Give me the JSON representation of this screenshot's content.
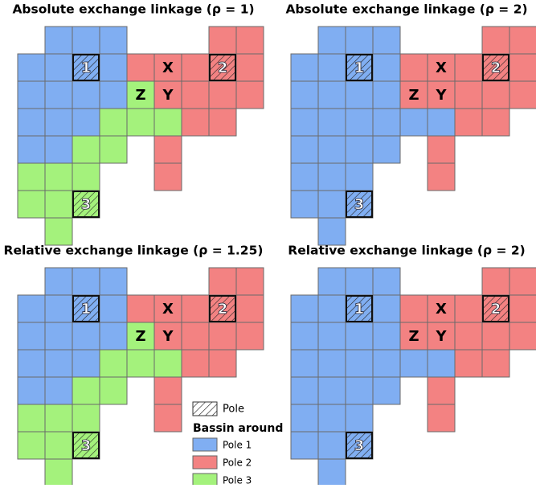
{
  "colors": {
    "B": "#80aef2",
    "R": "#f38282",
    "G": "#a4f27c"
  },
  "panels": [
    {
      "title": "Absolute exchange linkage (ρ = 1)",
      "grid": [
        "_BBB___RR",
        "BBBBRRRRR",
        "BBBBGRRRR",
        "BBBGGGRR_",
        "BBGG_R___",
        "GGG__R___",
        "GGG______",
        "_G_______"
      ],
      "labels": [
        {
          "row": 1,
          "col": 2,
          "text": "1",
          "pole": true
        },
        {
          "row": 1,
          "col": 5,
          "text": "X",
          "pole": false
        },
        {
          "row": 1,
          "col": 7,
          "text": "2",
          "pole": true
        },
        {
          "row": 2,
          "col": 4,
          "text": "Z",
          "pole": false
        },
        {
          "row": 2,
          "col": 5,
          "text": "Y",
          "pole": false
        },
        {
          "row": 6,
          "col": 2,
          "text": "3",
          "pole": true
        }
      ]
    },
    {
      "title": "Absolute exchange linkage (ρ = 2)",
      "grid": [
        "_BBB___RR",
        "BBBBRRRRR",
        "BBBBRRRRR",
        "BBBBBBRR_",
        "BBBB_R___",
        "BBB__R___",
        "BBB______",
        "_B_______"
      ],
      "labels": [
        {
          "row": 1,
          "col": 2,
          "text": "1",
          "pole": true
        },
        {
          "row": 1,
          "col": 5,
          "text": "X",
          "pole": false
        },
        {
          "row": 1,
          "col": 7,
          "text": "2",
          "pole": true
        },
        {
          "row": 2,
          "col": 4,
          "text": "Z",
          "pole": false
        },
        {
          "row": 2,
          "col": 5,
          "text": "Y",
          "pole": false
        },
        {
          "row": 6,
          "col": 2,
          "text": "3",
          "pole": true
        }
      ]
    },
    {
      "title": "Relative exchange linkage (ρ = 1.25)",
      "grid": [
        "_BBB___RR",
        "BBBBRRRRR",
        "BBBBGRRRR",
        "BBBGGGRR_",
        "BBGG_R___",
        "GGG__R___",
        "GGG______",
        "_G_______"
      ],
      "labels": [
        {
          "row": 1,
          "col": 2,
          "text": "1",
          "pole": true
        },
        {
          "row": 1,
          "col": 5,
          "text": "X",
          "pole": false
        },
        {
          "row": 1,
          "col": 7,
          "text": "2",
          "pole": true
        },
        {
          "row": 2,
          "col": 4,
          "text": "Z",
          "pole": false
        },
        {
          "row": 2,
          "col": 5,
          "text": "Y",
          "pole": false
        },
        {
          "row": 6,
          "col": 2,
          "text": "3",
          "pole": true
        }
      ]
    },
    {
      "title": "Relative exchange linkage (ρ = 2)",
      "grid": [
        "_BBB___RR",
        "BBBBRRRRR",
        "BBBBRRRRR",
        "BBBBBBRR_",
        "BBBB_R___",
        "BBB__R___",
        "BBB______",
        "_B_______"
      ],
      "labels": [
        {
          "row": 1,
          "col": 2,
          "text": "1",
          "pole": true
        },
        {
          "row": 1,
          "col": 5,
          "text": "X",
          "pole": false
        },
        {
          "row": 1,
          "col": 7,
          "text": "2",
          "pole": true
        },
        {
          "row": 2,
          "col": 4,
          "text": "Z",
          "pole": false
        },
        {
          "row": 2,
          "col": 5,
          "text": "Y",
          "pole": false
        },
        {
          "row": 6,
          "col": 2,
          "text": "3",
          "pole": true
        }
      ]
    }
  ],
  "legend": {
    "pole": "Pole",
    "title": "Bassin around",
    "items": [
      {
        "label": "Pole 1",
        "key": "B"
      },
      {
        "label": "Pole 2",
        "key": "R"
      },
      {
        "label": "Pole 3",
        "key": "G"
      }
    ]
  }
}
